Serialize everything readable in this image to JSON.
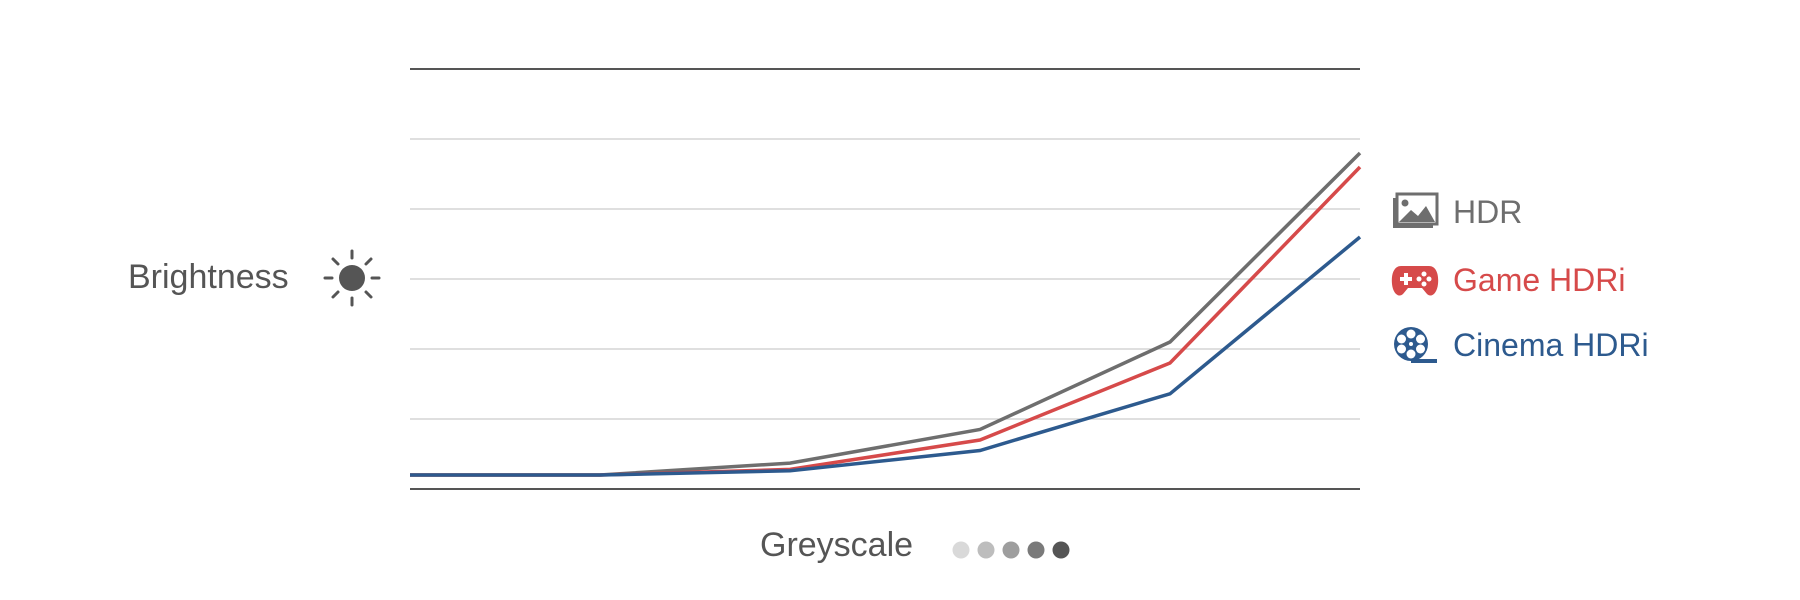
{
  "chart_data": {
    "type": "line",
    "ylabel": "Brightness",
    "xlabel": "Greyscale",
    "x": [
      0,
      1,
      2,
      3,
      4,
      5
    ],
    "ylim": [
      0,
      6
    ],
    "grid": true,
    "legend_position": "right",
    "series": [
      {
        "name": "HDR",
        "color": "#6e6e6e",
        "icon": "image-icon",
        "values": [
          0.2,
          0.2,
          0.37,
          0.85,
          2.1,
          4.8
        ]
      },
      {
        "name": "Game HDRi",
        "color": "#d64a4a",
        "icon": "gamepad-icon",
        "values": [
          0.2,
          0.2,
          0.28,
          0.7,
          1.8,
          4.6
        ]
      },
      {
        "name": "Cinema HDRi",
        "color": "#2d5a8e",
        "icon": "film-reel-icon",
        "values": [
          0.2,
          0.2,
          0.26,
          0.55,
          1.36,
          3.6
        ]
      }
    ]
  },
  "brightness_icon": "sun-icon",
  "greyscale_dots": [
    "#d9d9d9",
    "#bdbdbd",
    "#9e9e9e",
    "#7a7a7a",
    "#555555"
  ]
}
